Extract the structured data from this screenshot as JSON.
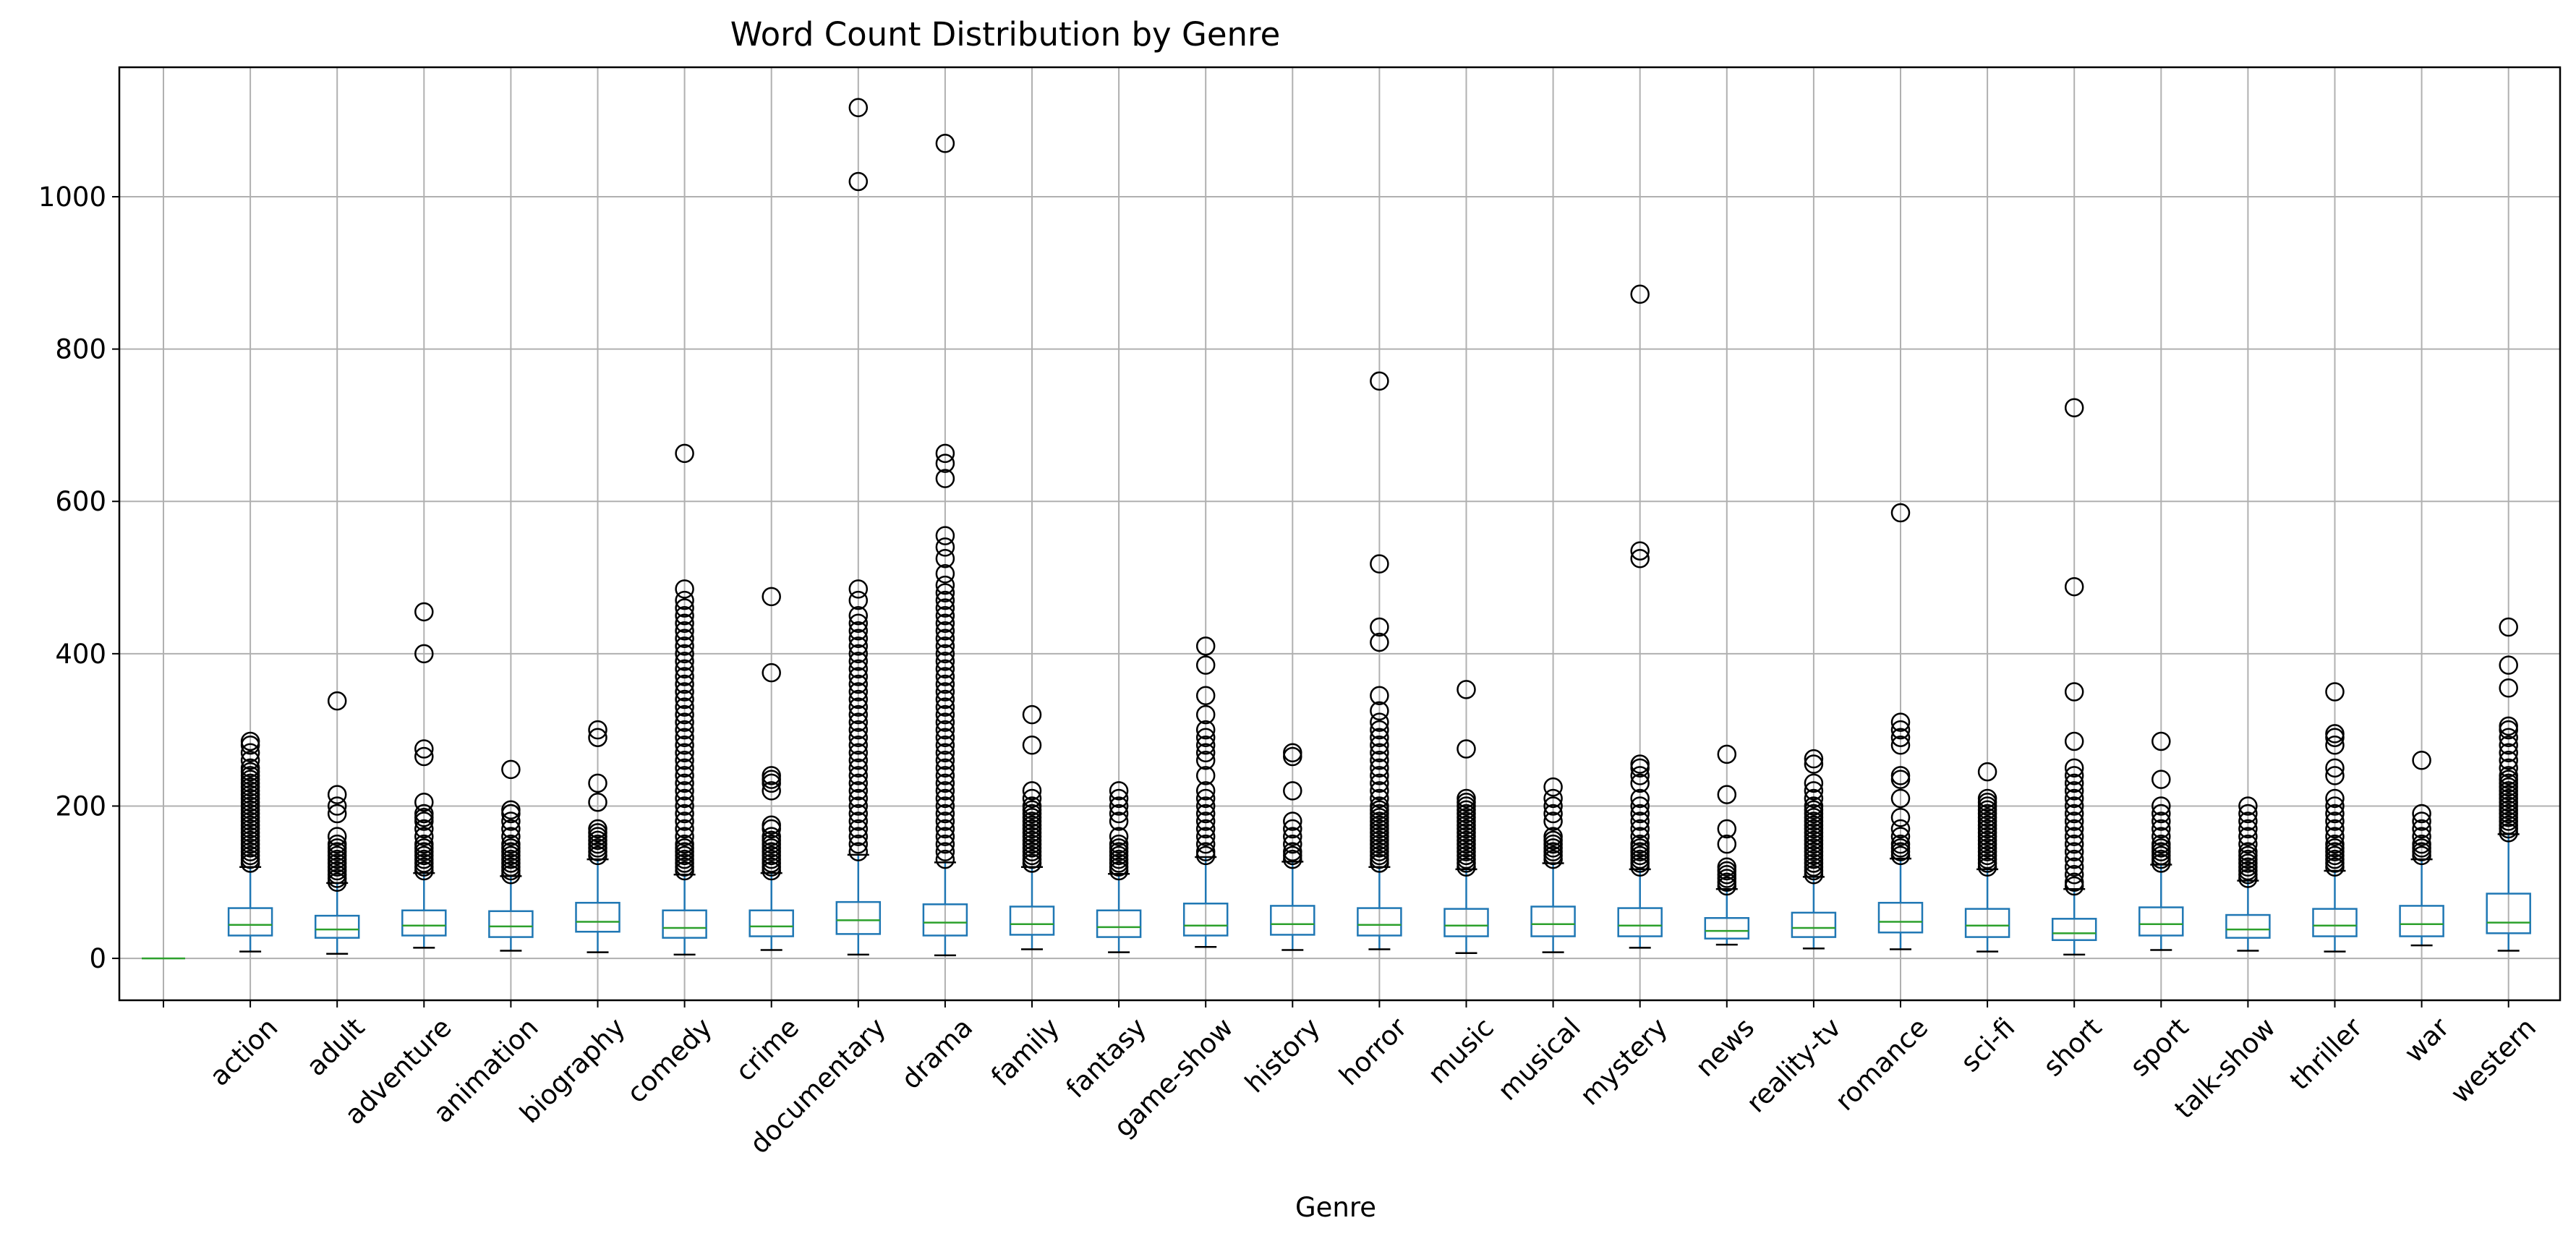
{
  "chart_data": {
    "type": "box",
    "title": "Word Count Distribution by Genre",
    "xlabel": "Genre",
    "ylabel": "",
    "ylim": [
      -55,
      1170
    ],
    "yticks": [
      0,
      200,
      400,
      600,
      800,
      1000
    ],
    "grid": true,
    "categories": [
      "",
      "action",
      "adult",
      "adventure",
      "animation",
      "biography",
      "comedy",
      "crime",
      "documentary",
      "drama",
      "family",
      "fantasy",
      "game-show",
      "history",
      "horror",
      "music",
      "musical",
      "mystery",
      "news",
      "reality-tv",
      "romance",
      "sci-fi",
      "short",
      "sport",
      "talk-show",
      "thriller",
      "war",
      "western"
    ],
    "boxes": [
      {
        "whislo": 0,
        "q1": 0,
        "med": 0,
        "q3": 0,
        "whishi": 0,
        "fliers": []
      },
      {
        "whislo": 9,
        "q1": 30,
        "med": 44,
        "q3": 66,
        "whishi": 120,
        "fliers": [
          125,
          130,
          135,
          140,
          145,
          150,
          155,
          160,
          165,
          170,
          175,
          180,
          185,
          190,
          195,
          200,
          205,
          210,
          215,
          220,
          225,
          230,
          235,
          240,
          245,
          250,
          260,
          270,
          280,
          285
        ]
      },
      {
        "whislo": 6,
        "q1": 27,
        "med": 38,
        "q3": 56,
        "whishi": 99,
        "fliers": [
          100,
          105,
          110,
          115,
          120,
          125,
          130,
          135,
          140,
          145,
          150,
          160,
          190,
          200,
          215,
          338
        ]
      },
      {
        "whislo": 14,
        "q1": 30,
        "med": 43,
        "q3": 63,
        "whishi": 112,
        "fliers": [
          115,
          120,
          125,
          130,
          135,
          140,
          145,
          150,
          160,
          170,
          180,
          185,
          190,
          205,
          265,
          275,
          400,
          455
        ]
      },
      {
        "whislo": 10,
        "q1": 28,
        "med": 42,
        "q3": 62,
        "whishi": 108,
        "fliers": [
          110,
          115,
          120,
          125,
          130,
          135,
          140,
          145,
          150,
          160,
          170,
          180,
          190,
          195,
          248
        ]
      },
      {
        "whislo": 8,
        "q1": 35,
        "med": 48,
        "q3": 73,
        "whishi": 130,
        "fliers": [
          135,
          140,
          145,
          150,
          155,
          160,
          165,
          170,
          205,
          230,
          290,
          300
        ]
      },
      {
        "whislo": 5,
        "q1": 27,
        "med": 40,
        "q3": 63,
        "whishi": 110,
        "fliers": [
          115,
          120,
          125,
          130,
          135,
          140,
          145,
          150,
          160,
          170,
          180,
          190,
          200,
          210,
          220,
          230,
          240,
          250,
          260,
          270,
          280,
          290,
          300,
          310,
          320,
          330,
          340,
          350,
          360,
          370,
          380,
          390,
          400,
          410,
          420,
          430,
          440,
          450,
          460,
          470,
          485,
          663
        ]
      },
      {
        "whislo": 11,
        "q1": 29,
        "med": 42,
        "q3": 63,
        "whishi": 112,
        "fliers": [
          115,
          120,
          125,
          130,
          135,
          140,
          145,
          150,
          155,
          160,
          170,
          175,
          220,
          230,
          235,
          240,
          375,
          475
        ]
      },
      {
        "whislo": 5,
        "q1": 32,
        "med": 50,
        "q3": 74,
        "whishi": 136,
        "fliers": [
          140,
          150,
          160,
          170,
          180,
          190,
          200,
          210,
          220,
          230,
          240,
          250,
          260,
          270,
          280,
          290,
          300,
          310,
          320,
          330,
          340,
          350,
          360,
          370,
          380,
          390,
          400,
          410,
          420,
          430,
          440,
          450,
          470,
          485,
          1020,
          1117
        ]
      },
      {
        "whislo": 4,
        "q1": 30,
        "med": 47,
        "q3": 71,
        "whishi": 126,
        "fliers": [
          130,
          140,
          150,
          160,
          170,
          180,
          190,
          200,
          210,
          220,
          230,
          240,
          250,
          260,
          270,
          280,
          290,
          300,
          310,
          320,
          330,
          340,
          350,
          360,
          370,
          380,
          390,
          400,
          410,
          420,
          430,
          440,
          450,
          460,
          470,
          480,
          490,
          505,
          525,
          540,
          555,
          630,
          650,
          663,
          1070
        ]
      },
      {
        "whislo": 12,
        "q1": 31,
        "med": 45,
        "q3": 68,
        "whishi": 120,
        "fliers": [
          125,
          130,
          135,
          140,
          145,
          150,
          155,
          160,
          165,
          170,
          175,
          180,
          185,
          190,
          195,
          200,
          210,
          220,
          280,
          320
        ]
      },
      {
        "whislo": 8,
        "q1": 28,
        "med": 41,
        "q3": 63,
        "whishi": 111,
        "fliers": [
          115,
          120,
          125,
          130,
          135,
          140,
          145,
          150,
          160,
          180,
          190,
          200,
          210,
          220
        ]
      },
      {
        "whislo": 15,
        "q1": 30,
        "med": 43,
        "q3": 72,
        "whishi": 133,
        "fliers": [
          135,
          140,
          150,
          160,
          170,
          180,
          190,
          200,
          210,
          220,
          240,
          260,
          270,
          280,
          290,
          300,
          320,
          345,
          385,
          410
        ]
      },
      {
        "whislo": 11,
        "q1": 31,
        "med": 45,
        "q3": 69,
        "whishi": 127,
        "fliers": [
          130,
          135,
          140,
          150,
          160,
          170,
          180,
          220,
          265,
          270
        ]
      },
      {
        "whislo": 12,
        "q1": 30,
        "med": 44,
        "q3": 66,
        "whishi": 120,
        "fliers": [
          125,
          130,
          135,
          140,
          145,
          150,
          155,
          160,
          165,
          170,
          175,
          180,
          185,
          190,
          195,
          200,
          210,
          220,
          230,
          240,
          250,
          260,
          270,
          280,
          290,
          300,
          310,
          325,
          345,
          415,
          435,
          518,
          758
        ]
      },
      {
        "whislo": 7,
        "q1": 29,
        "med": 43,
        "q3": 65,
        "whishi": 117,
        "fliers": [
          120,
          125,
          130,
          135,
          140,
          145,
          150,
          155,
          160,
          165,
          170,
          175,
          180,
          185,
          190,
          195,
          200,
          205,
          210,
          275,
          353
        ]
      },
      {
        "whislo": 8,
        "q1": 29,
        "med": 45,
        "q3": 68,
        "whishi": 125,
        "fliers": [
          130,
          135,
          140,
          145,
          150,
          155,
          160,
          180,
          190,
          200,
          210,
          225
        ]
      },
      {
        "whislo": 14,
        "q1": 29,
        "med": 43,
        "q3": 66,
        "whishi": 117,
        "fliers": [
          120,
          125,
          130,
          135,
          140,
          145,
          150,
          160,
          170,
          180,
          190,
          200,
          210,
          230,
          240,
          250,
          255,
          525,
          535,
          872
        ]
      },
      {
        "whislo": 18,
        "q1": 26,
        "med": 36,
        "q3": 53,
        "whishi": 91,
        "fliers": [
          95,
          100,
          105,
          110,
          115,
          120,
          150,
          170,
          215,
          268
        ]
      },
      {
        "whislo": 13,
        "q1": 28,
        "med": 40,
        "q3": 60,
        "whishi": 107,
        "fliers": [
          110,
          115,
          120,
          125,
          130,
          135,
          140,
          145,
          150,
          155,
          160,
          165,
          170,
          175,
          180,
          185,
          190,
          195,
          200,
          210,
          220,
          230,
          255,
          262
        ]
      },
      {
        "whislo": 12,
        "q1": 34,
        "med": 48,
        "q3": 73,
        "whishi": 131,
        "fliers": [
          135,
          140,
          145,
          150,
          160,
          170,
          185,
          210,
          235,
          240,
          280,
          290,
          300,
          310,
          585
        ]
      },
      {
        "whislo": 9,
        "q1": 28,
        "med": 43,
        "q3": 65,
        "whishi": 117,
        "fliers": [
          120,
          125,
          130,
          135,
          140,
          145,
          150,
          155,
          160,
          165,
          170,
          175,
          180,
          185,
          190,
          195,
          200,
          205,
          210,
          245
        ]
      },
      {
        "whislo": 5,
        "q1": 24,
        "med": 33,
        "q3": 52,
        "whishi": 91,
        "fliers": [
          95,
          100,
          110,
          120,
          130,
          140,
          150,
          160,
          170,
          180,
          190,
          200,
          210,
          220,
          230,
          240,
          250,
          285,
          350,
          488,
          723
        ]
      },
      {
        "whislo": 11,
        "q1": 30,
        "med": 45,
        "q3": 67,
        "whishi": 123,
        "fliers": [
          125,
          130,
          135,
          140,
          145,
          150,
          160,
          170,
          180,
          190,
          200,
          235,
          285
        ]
      },
      {
        "whislo": 10,
        "q1": 27,
        "med": 38,
        "q3": 57,
        "whishi": 102,
        "fliers": [
          105,
          110,
          115,
          120,
          125,
          130,
          135,
          140,
          150,
          160,
          170,
          180,
          190,
          200
        ]
      },
      {
        "whislo": 9,
        "q1": 29,
        "med": 43,
        "q3": 65,
        "whishi": 115,
        "fliers": [
          120,
          125,
          130,
          135,
          140,
          145,
          150,
          160,
          170,
          180,
          190,
          200,
          210,
          240,
          250,
          280,
          290,
          295,
          350
        ]
      },
      {
        "whislo": 17,
        "q1": 29,
        "med": 45,
        "q3": 69,
        "whishi": 130,
        "fliers": [
          135,
          140,
          145,
          150,
          160,
          170,
          180,
          190,
          260
        ]
      },
      {
        "whislo": 10,
        "q1": 33,
        "med": 47,
        "q3": 85,
        "whishi": 163,
        "fliers": [
          165,
          170,
          175,
          180,
          185,
          190,
          195,
          200,
          205,
          210,
          215,
          220,
          225,
          230,
          235,
          240,
          250,
          260,
          270,
          280,
          290,
          300,
          305,
          355,
          385,
          435
        ]
      }
    ]
  }
}
